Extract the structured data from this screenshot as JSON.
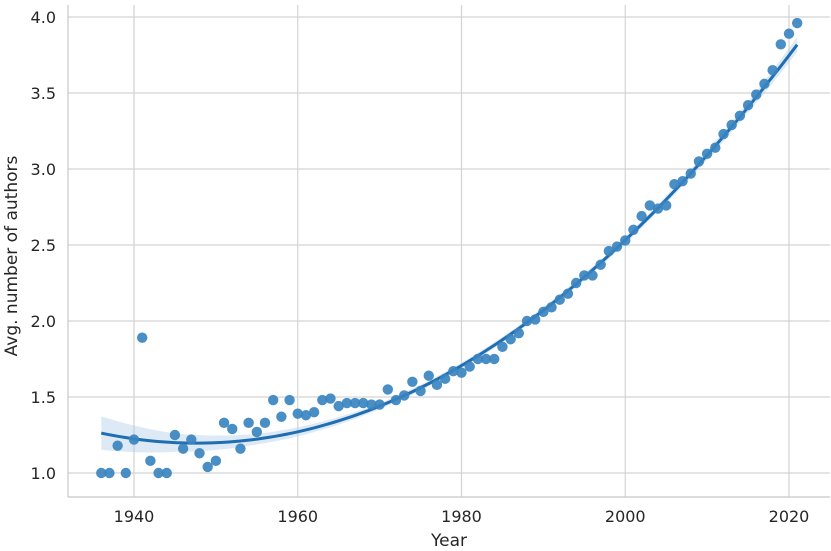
{
  "chart_data": {
    "type": "scatter",
    "xlabel": "Year",
    "ylabel": "Avg. number of authors",
    "xlim": [
      1932,
      2025
    ],
    "ylim": [
      0.85,
      4.0
    ],
    "xticks": [
      1940,
      1960,
      1980,
      2000,
      2020
    ],
    "yticks": [
      1.0,
      1.5,
      2.0,
      2.5,
      3.0,
      3.5,
      4.0
    ],
    "xtick_labels": [
      "1940",
      "1960",
      "1980",
      "2000",
      "2020"
    ],
    "ytick_labels": [
      "1.0",
      "1.5",
      "2.0",
      "2.5",
      "3.0",
      "3.5",
      "4.0"
    ],
    "grid": true,
    "colors": {
      "points": "#3a84bf",
      "fit": "#1f6db2",
      "band": "#9ec4e2"
    },
    "points": [
      [
        1936,
        1.0
      ],
      [
        1937,
        1.0
      ],
      [
        1938,
        1.18
      ],
      [
        1939,
        1.0
      ],
      [
        1940,
        1.22
      ],
      [
        1941,
        1.89
      ],
      [
        1942,
        1.08
      ],
      [
        1943,
        1.0
      ],
      [
        1944,
        1.0
      ],
      [
        1945,
        1.25
      ],
      [
        1946,
        1.16
      ],
      [
        1947,
        1.22
      ],
      [
        1948,
        1.13
      ],
      [
        1949,
        1.04
      ],
      [
        1950,
        1.08
      ],
      [
        1951,
        1.33
      ],
      [
        1952,
        1.29
      ],
      [
        1953,
        1.16
      ],
      [
        1954,
        1.33
      ],
      [
        1955,
        1.27
      ],
      [
        1956,
        1.33
      ],
      [
        1957,
        1.48
      ],
      [
        1958,
        1.37
      ],
      [
        1959,
        1.48
      ],
      [
        1960,
        1.39
      ],
      [
        1961,
        1.38
      ],
      [
        1962,
        1.4
      ],
      [
        1963,
        1.48
      ],
      [
        1964,
        1.49
      ],
      [
        1965,
        1.44
      ],
      [
        1966,
        1.46
      ],
      [
        1967,
        1.46
      ],
      [
        1968,
        1.46
      ],
      [
        1969,
        1.45
      ],
      [
        1970,
        1.45
      ],
      [
        1971,
        1.55
      ],
      [
        1972,
        1.48
      ],
      [
        1973,
        1.51
      ],
      [
        1974,
        1.6
      ],
      [
        1975,
        1.54
      ],
      [
        1976,
        1.64
      ],
      [
        1977,
        1.58
      ],
      [
        1978,
        1.62
      ],
      [
        1979,
        1.67
      ],
      [
        1980,
        1.66
      ],
      [
        1981,
        1.7
      ],
      [
        1982,
        1.75
      ],
      [
        1983,
        1.75
      ],
      [
        1984,
        1.75
      ],
      [
        1985,
        1.83
      ],
      [
        1986,
        1.88
      ],
      [
        1987,
        1.92
      ],
      [
        1988,
        2.0
      ],
      [
        1989,
        2.01
      ],
      [
        1990,
        2.06
      ],
      [
        1991,
        2.09
      ],
      [
        1992,
        2.14
      ],
      [
        1993,
        2.18
      ],
      [
        1994,
        2.25
      ],
      [
        1995,
        2.3
      ],
      [
        1996,
        2.3
      ],
      [
        1997,
        2.37
      ],
      [
        1998,
        2.46
      ],
      [
        1999,
        2.49
      ],
      [
        2000,
        2.53
      ],
      [
        2001,
        2.6
      ],
      [
        2002,
        2.69
      ],
      [
        2003,
        2.76
      ],
      [
        2004,
        2.74
      ],
      [
        2005,
        2.76
      ],
      [
        2006,
        2.9
      ],
      [
        2007,
        2.92
      ],
      [
        2008,
        2.97
      ],
      [
        2009,
        3.05
      ],
      [
        2010,
        3.1
      ],
      [
        2011,
        3.14
      ],
      [
        2012,
        3.23
      ],
      [
        2013,
        3.29
      ],
      [
        2014,
        3.35
      ],
      [
        2015,
        3.42
      ],
      [
        2016,
        3.49
      ],
      [
        2017,
        3.56
      ],
      [
        2018,
        3.65
      ],
      [
        2019,
        3.82
      ],
      [
        2020,
        3.89
      ],
      [
        2021,
        3.96
      ]
    ],
    "fit": {
      "type": "polynomial",
      "order": 2,
      "x_range": [
        1936,
        2021
      ],
      "points": [
        [
          1936,
          1.24
        ],
        [
          1945,
          1.2
        ],
        [
          1950,
          1.21
        ],
        [
          1960,
          1.3
        ],
        [
          1970,
          1.46
        ],
        [
          1980,
          1.7
        ],
        [
          1990,
          2.03
        ],
        [
          2000,
          2.52
        ],
        [
          2010,
          3.1
        ],
        [
          2021,
          3.83
        ]
      ],
      "band_halfwidth": [
        [
          1936,
          0.11
        ],
        [
          1945,
          0.06
        ],
        [
          1955,
          0.035
        ],
        [
          1970,
          0.02
        ],
        [
          1990,
          0.02
        ],
        [
          2005,
          0.025
        ],
        [
          2015,
          0.035
        ],
        [
          2021,
          0.05
        ]
      ]
    }
  }
}
